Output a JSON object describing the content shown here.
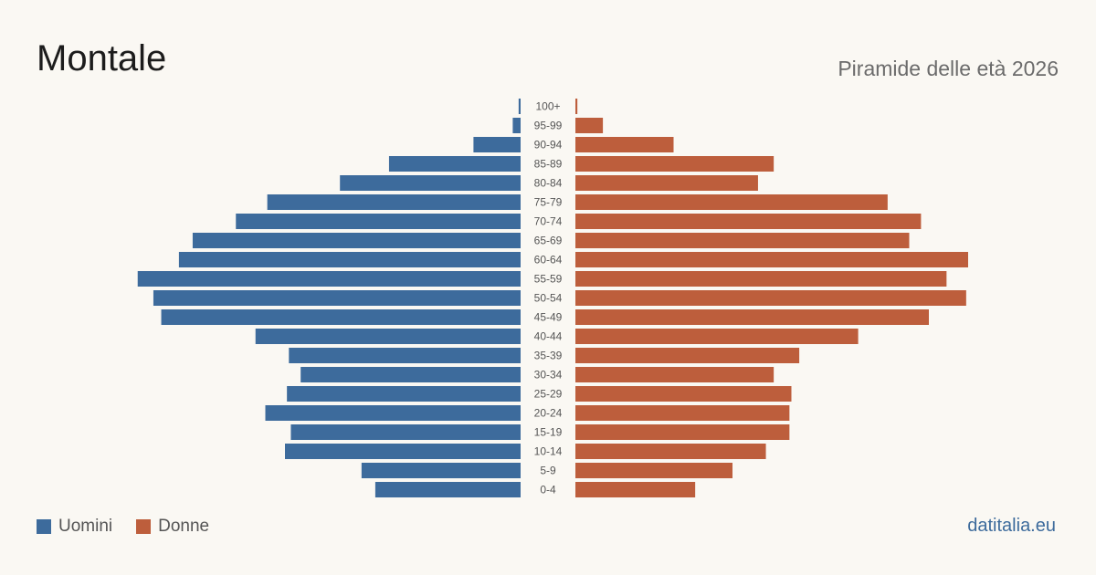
{
  "header": {
    "title": "Montale",
    "subtitle": "Piramide delle età 2026"
  },
  "legend": {
    "male_label": "Uomini",
    "female_label": "Donne"
  },
  "brand": {
    "label": "datitalia.eu"
  },
  "colors": {
    "male": "#3d6b9c",
    "female": "#bd5e3c",
    "brand": "#3d6b9c"
  },
  "chart_data": {
    "type": "bar",
    "orientation": "horizontal-pyramid",
    "title": "Montale",
    "subtitle": "Piramide delle età 2026",
    "categories": [
      "100+",
      "95-99",
      "90-94",
      "85-89",
      "80-84",
      "75-79",
      "70-74",
      "65-69",
      "60-64",
      "55-59",
      "50-54",
      "45-49",
      "40-44",
      "35-39",
      "30-34",
      "25-29",
      "20-24",
      "15-19",
      "10-14",
      "5-9",
      "0-4"
    ],
    "series": [
      {
        "name": "Uomini",
        "side": "left",
        "values": [
          1,
          4,
          24,
          67,
          92,
          129,
          145,
          167,
          174,
          195,
          187,
          183,
          135,
          118,
          112,
          119,
          130,
          117,
          120,
          81,
          74
        ]
      },
      {
        "name": "Donne",
        "side": "right",
        "values": [
          1,
          14,
          50,
          101,
          93,
          159,
          176,
          170,
          200,
          189,
          199,
          180,
          144,
          114,
          101,
          110,
          109,
          109,
          97,
          80,
          61
        ]
      }
    ],
    "grid": false,
    "legend_position": "bottom-left"
  }
}
